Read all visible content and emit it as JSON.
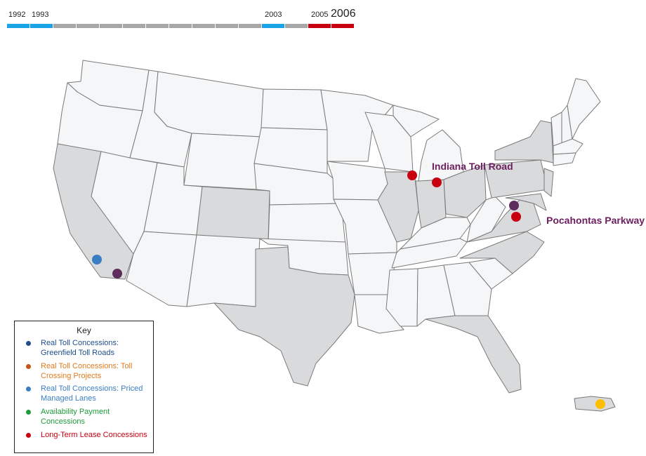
{
  "timeline": {
    "years": [
      {
        "label": "1992",
        "big": false
      },
      {
        "label": "1993",
        "big": false
      },
      {
        "label": "2003",
        "big": false
      },
      {
        "label": "2005",
        "big": false
      },
      {
        "label": "2006",
        "big": true
      }
    ],
    "segments": [
      {
        "status": "past-event",
        "color": "#1aa3e6"
      },
      {
        "status": "past-event",
        "color": "#1aa3e6"
      },
      {
        "status": "no-event",
        "color": "#a7a7a7"
      },
      {
        "status": "no-event",
        "color": "#a7a7a7"
      },
      {
        "status": "no-event",
        "color": "#a7a7a7"
      },
      {
        "status": "no-event",
        "color": "#a7a7a7"
      },
      {
        "status": "no-event",
        "color": "#a7a7a7"
      },
      {
        "status": "no-event",
        "color": "#a7a7a7"
      },
      {
        "status": "no-event",
        "color": "#a7a7a7"
      },
      {
        "status": "no-event",
        "color": "#a7a7a7"
      },
      {
        "status": "no-event",
        "color": "#a7a7a7"
      },
      {
        "status": "past-event",
        "color": "#1aa3e6"
      },
      {
        "status": "no-event",
        "color": "#a7a7a7"
      },
      {
        "status": "current-event",
        "color": "#c8000f"
      },
      {
        "status": "current-event",
        "color": "#c8000f"
      }
    ]
  },
  "map": {
    "state_fill_default": "#f5f6f8",
    "state_fill_highlight": "#d9dadb",
    "state_stroke": "#7a7a7a",
    "highlighted_states": [
      "CA",
      "CO",
      "TX",
      "IL",
      "IN",
      "OH",
      "PA",
      "NY",
      "VA",
      "NC",
      "FL",
      "NJ",
      "DE",
      "MD",
      "PR"
    ],
    "markers": [
      {
        "id": "marker-so-cal-blue",
        "category": "Real Toll Concessions: Priced Managed Lanes",
        "color": "#3b7dc4"
      },
      {
        "id": "marker-so-cal-purple",
        "color": "#5e2d5e"
      },
      {
        "id": "marker-chicago",
        "category": "Long-Term Lease Concessions",
        "color": "#c8000f"
      },
      {
        "id": "marker-indiana",
        "category": "Long-Term Lease Concessions",
        "color": "#c8000f"
      },
      {
        "id": "marker-virginia-purple",
        "color": "#5e2d5e"
      },
      {
        "id": "marker-virginia-red",
        "category": "Long-Term Lease Concessions",
        "color": "#c8000f"
      },
      {
        "id": "marker-puerto-rico",
        "color": "#ffbf00"
      }
    ],
    "labels": [
      {
        "id": "indiana-toll-road",
        "text": "Indiana Toll Road",
        "color": "#6d2060"
      },
      {
        "id": "pocahontas-parkway",
        "text": "Pocahontas Parkway",
        "color": "#6d2060"
      }
    ]
  },
  "key": {
    "title": "Key",
    "items": [
      {
        "label": "Real Toll Concessions: Greenfield Toll Roads",
        "color": "#1f4e8c"
      },
      {
        "label": "Real Toll Concessions: Toll Crossing Projects",
        "color": "#e07a1f",
        "dot_color": "#c4541a"
      },
      {
        "label": "Real Toll Concessions: Priced Managed Lanes",
        "color": "#3b7dc4"
      },
      {
        "label": "Availability Payment Concessions",
        "color": "#1f9a3c"
      },
      {
        "label": "Long-Term Lease Concessions",
        "color": "#c8000f"
      }
    ]
  }
}
